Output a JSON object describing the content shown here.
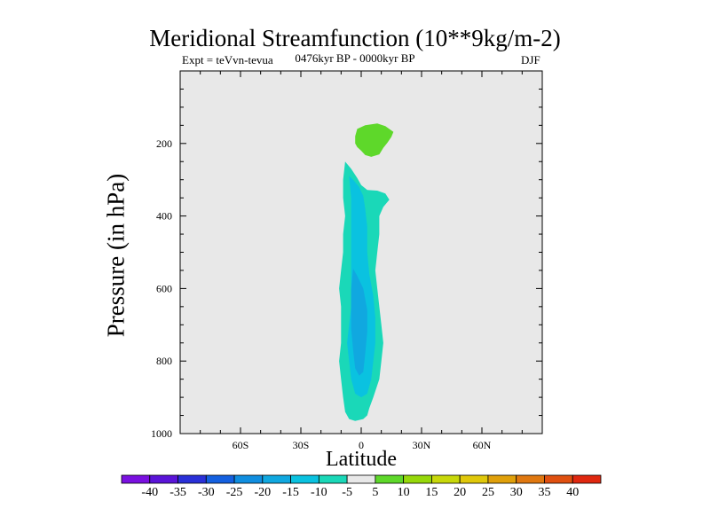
{
  "title": "Meridional Streamfunction (10**9kg/m-2)",
  "subtitle_left": "Expt = teVvn-tevua",
  "subtitle_center": "0476kyr BP - 0000kyr BP",
  "subtitle_right": "DJF",
  "chart_data": {
    "type": "contour",
    "xlabel": "Latitude",
    "ylabel": "Pressure (in hPa)",
    "xlim": [
      -90,
      90
    ],
    "ylim": [
      1000,
      0
    ],
    "x_ticks": [
      {
        "value": -60,
        "label": "60S"
      },
      {
        "value": -30,
        "label": "30S"
      },
      {
        "value": 0,
        "label": "0"
      },
      {
        "value": 30,
        "label": "30N"
      },
      {
        "value": 60,
        "label": "60N"
      }
    ],
    "y_ticks": [
      {
        "value": 200,
        "label": "200"
      },
      {
        "value": 400,
        "label": "400"
      },
      {
        "value": 600,
        "label": "600"
      },
      {
        "value": 800,
        "label": "800"
      },
      {
        "value": 1000,
        "label": "1000"
      }
    ],
    "background_color": "#e8e8e8",
    "regions": [
      {
        "name": "positive-cell-upper",
        "level": "5 to 10",
        "color": "#5ed82a",
        "points": [
          [
            -3,
            180
          ],
          [
            -2,
            160
          ],
          [
            2,
            150
          ],
          [
            8,
            145
          ],
          [
            12,
            152
          ],
          [
            16,
            168
          ],
          [
            15,
            182
          ],
          [
            13,
            198
          ],
          [
            11,
            212
          ],
          [
            9,
            230
          ],
          [
            5,
            237
          ],
          [
            2,
            232
          ],
          [
            0,
            220
          ],
          [
            -2,
            210
          ],
          [
            -3,
            200
          ]
        ]
      },
      {
        "name": "negative-cell-outer",
        "level": "-10 to -5",
        "color": "#1ad8b8",
        "points": [
          [
            -8,
            250
          ],
          [
            -5,
            270
          ],
          [
            -2,
            295
          ],
          [
            0,
            315
          ],
          [
            3,
            328
          ],
          [
            8,
            330
          ],
          [
            12,
            338
          ],
          [
            14,
            355
          ],
          [
            11,
            375
          ],
          [
            9,
            400
          ],
          [
            9,
            450
          ],
          [
            8,
            500
          ],
          [
            7,
            550
          ],
          [
            8,
            600
          ],
          [
            9,
            650
          ],
          [
            10,
            700
          ],
          [
            11,
            750
          ],
          [
            10,
            800
          ],
          [
            9,
            850
          ],
          [
            6,
            900
          ],
          [
            4,
            930
          ],
          [
            3,
            950
          ],
          [
            1,
            960
          ],
          [
            -3,
            965
          ],
          [
            -6,
            960
          ],
          [
            -8,
            940
          ],
          [
            -9,
            900
          ],
          [
            -10,
            850
          ],
          [
            -11,
            800
          ],
          [
            -10,
            750
          ],
          [
            -10,
            700
          ],
          [
            -10,
            650
          ],
          [
            -11,
            600
          ],
          [
            -10,
            550
          ],
          [
            -9,
            500
          ],
          [
            -9,
            450
          ],
          [
            -8,
            400
          ],
          [
            -9,
            350
          ],
          [
            -9,
            300
          ]
        ]
      },
      {
        "name": "negative-cell-mid",
        "level": "-15 to -10",
        "color": "#0ac2e0",
        "points": [
          [
            -6,
            290
          ],
          [
            -4,
            300
          ],
          [
            -1,
            320
          ],
          [
            1,
            345
          ],
          [
            2,
            380
          ],
          [
            3,
            430
          ],
          [
            3,
            500
          ],
          [
            4,
            560
          ],
          [
            6,
            620
          ],
          [
            7,
            680
          ],
          [
            7,
            750
          ],
          [
            6,
            800
          ],
          [
            5,
            850
          ],
          [
            3,
            890
          ],
          [
            0,
            900
          ],
          [
            -3,
            890
          ],
          [
            -5,
            850
          ],
          [
            -6,
            800
          ],
          [
            -7,
            750
          ],
          [
            -6,
            700
          ],
          [
            -5,
            650
          ],
          [
            -5,
            600
          ],
          [
            -5,
            550
          ],
          [
            -5,
            500
          ],
          [
            -5,
            450
          ],
          [
            -5,
            400
          ],
          [
            -5,
            350
          ]
        ]
      },
      {
        "name": "negative-cell-core",
        "level": "-20 to -15",
        "color": "#10a8e0",
        "points": [
          [
            -4,
            545
          ],
          [
            -2,
            565
          ],
          [
            1,
            600
          ],
          [
            3,
            660
          ],
          [
            3,
            720
          ],
          [
            2,
            780
          ],
          [
            1,
            830
          ],
          [
            -1,
            840
          ],
          [
            -3,
            820
          ],
          [
            -4,
            770
          ],
          [
            -5,
            710
          ],
          [
            -5,
            650
          ],
          [
            -5,
            600
          ]
        ]
      }
    ],
    "colorbar": {
      "labels": [
        "-40",
        "-35",
        "-30",
        "-25",
        "-20",
        "-15",
        "-10",
        "-5",
        "5",
        "10",
        "15",
        "20",
        "25",
        "30",
        "35",
        "40"
      ],
      "colors": [
        "#7a10e0",
        "#5a14d8",
        "#2a30d8",
        "#1460e0",
        "#108ee0",
        "#10a8e0",
        "#0ac2e0",
        "#1ad8b8",
        "#e8e8e8",
        "#5ed82a",
        "#96d80a",
        "#c8d80a",
        "#e0c80a",
        "#e0a00a",
        "#e07810",
        "#e05010",
        "#e02810"
      ]
    }
  }
}
